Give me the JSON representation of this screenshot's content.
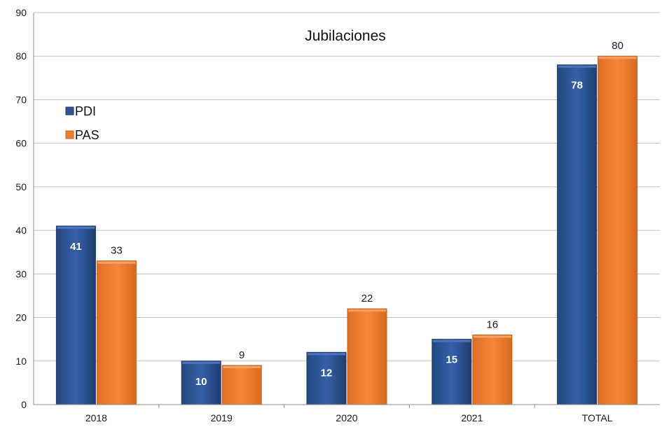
{
  "chart_data": {
    "type": "bar",
    "title": "Jubilaciones",
    "xlabel": "",
    "ylabel": "",
    "categories": [
      "2018",
      "2019",
      "2020",
      "2021",
      "TOTAL"
    ],
    "ylim": [
      0,
      90
    ],
    "yticks": [
      0,
      10,
      20,
      30,
      40,
      50,
      60,
      70,
      80,
      90
    ],
    "grid": true,
    "legend_position": "left",
    "series": [
      {
        "name": "PDI",
        "values": [
          41,
          10,
          12,
          15,
          78
        ],
        "color": "#2F5597",
        "label_style": "inside"
      },
      {
        "name": "PAS",
        "values": [
          33,
          9,
          22,
          16,
          80
        ],
        "color": "#ED7D31",
        "label_style": "above"
      }
    ]
  }
}
